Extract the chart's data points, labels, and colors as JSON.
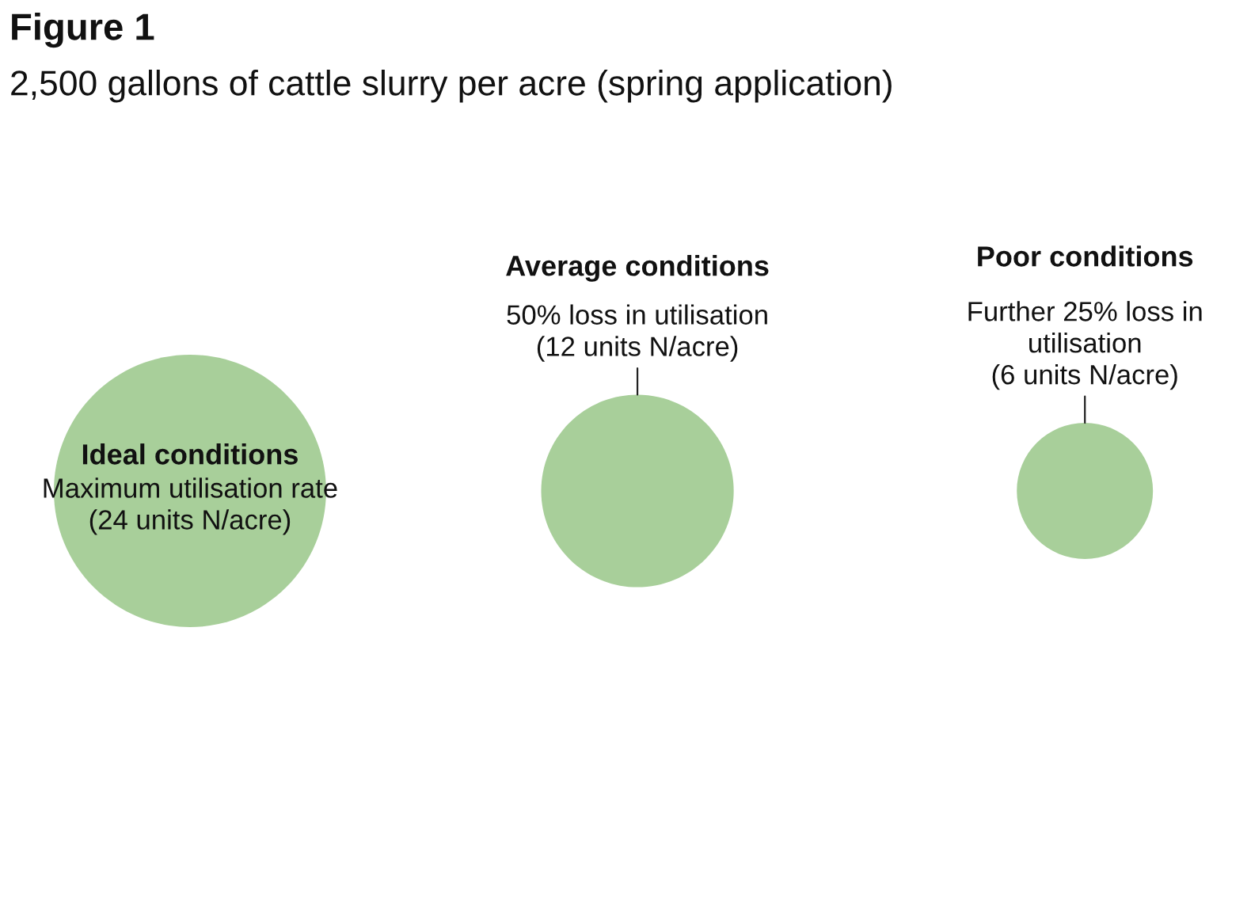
{
  "chart_data": {
    "type": "other",
    "title": "Figure 1",
    "subtitle": "2,500 gallons of cattle slurry per acre (spring application)",
    "categories": [
      "Ideal conditions",
      "Average conditions",
      "Poor conditions"
    ],
    "values": [
      24,
      12,
      6
    ],
    "value_labels": [
      "Maximum utilisation rate\n(24 units N/acre)",
      "50% loss in utilisation\n(12 units N/acre)",
      "Further 25% loss in\nutilisation\n(6 units N/acre)"
    ],
    "color": "#a8cf9a"
  }
}
